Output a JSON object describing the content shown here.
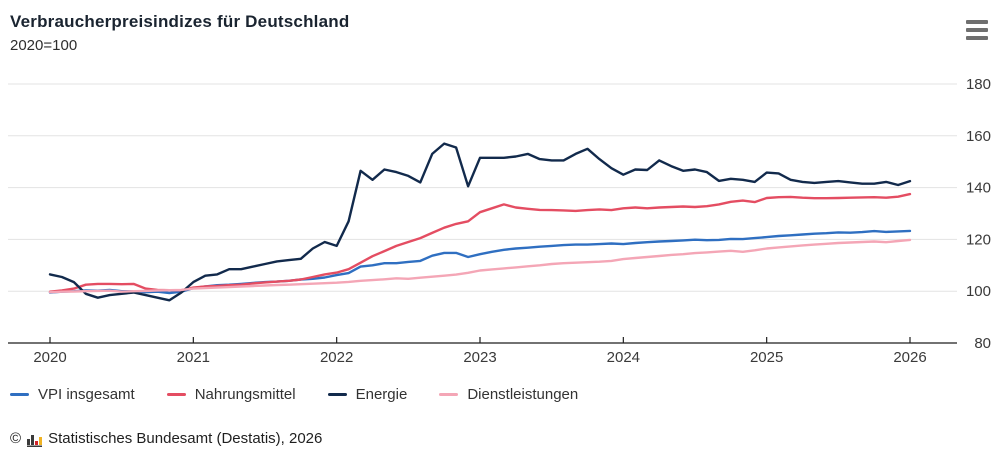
{
  "header": {
    "title": "Verbraucherpreisindizes für Deutschland",
    "subtitle": "2020=100",
    "menu_icon": "hamburger-menu-icon"
  },
  "footer": {
    "copyright_symbol": "©",
    "logo_icon": "destatis-bar-chart-icon",
    "source_text": "Statistisches Bundesamt (Destatis), 2026"
  },
  "colors": {
    "grid": "#e3e3e3",
    "axis": "#1f1f1f",
    "tick_text": "#3a3a3a",
    "title_text": "#1a2430"
  },
  "chart_data": {
    "type": "line",
    "title": "Verbraucherpreisindizes für Deutschland",
    "subtitle": "2020=100",
    "x_unit": "month",
    "x_start": "2020-01",
    "x_end": "2026-01",
    "x_tick_labels": [
      "2020",
      "2021",
      "2022",
      "2023",
      "2024",
      "2025",
      "2026"
    ],
    "y_ticks": [
      80,
      100,
      120,
      140,
      160,
      180
    ],
    "ylim": [
      80,
      186
    ],
    "grid": "horizontal",
    "y_axis_position": "right",
    "legend_position": "bottom",
    "series": [
      {
        "name": "VPI insgesamt",
        "color": "#2f6fc1",
        "values": [
          99.5,
          99.8,
          100.0,
          100.3,
          100.2,
          100.5,
          100.0,
          100.0,
          99.6,
          99.8,
          99.3,
          99.8,
          101.2,
          101.8,
          102.3,
          102.5,
          102.8,
          103.2,
          103.5,
          103.7,
          104.0,
          104.5,
          104.8,
          105.3,
          106.2,
          107.0,
          109.5,
          110.0,
          110.8,
          110.8,
          111.3,
          111.7,
          113.7,
          114.8,
          114.8,
          113.2,
          114.3,
          115.2,
          116.0,
          116.5,
          116.8,
          117.2,
          117.5,
          117.8,
          118.0,
          118.0,
          118.2,
          118.4,
          118.2,
          118.6,
          118.9,
          119.2,
          119.4,
          119.6,
          119.9,
          119.7,
          119.8,
          120.2,
          120.1,
          120.5,
          120.9,
          121.3,
          121.6,
          121.9,
          122.2,
          122.4,
          122.7,
          122.6,
          122.8,
          123.2,
          122.9,
          123.1,
          123.3
        ]
      },
      {
        "name": "Nahrungsmittel",
        "color": "#e44d62",
        "values": [
          99.8,
          100.3,
          101.0,
          102.5,
          102.8,
          102.8,
          102.7,
          102.8,
          101.0,
          100.5,
          100.4,
          100.4,
          101.4,
          101.8,
          102.0,
          102.3,
          102.5,
          103.0,
          103.4,
          103.7,
          104.0,
          104.5,
          105.5,
          106.5,
          107.2,
          108.5,
          111.0,
          113.5,
          115.5,
          117.5,
          119.0,
          120.5,
          122.5,
          124.5,
          126.0,
          127.0,
          130.5,
          132.0,
          133.5,
          132.3,
          131.8,
          131.4,
          131.3,
          131.2,
          131.0,
          131.3,
          131.6,
          131.3,
          132.0,
          132.3,
          132.0,
          132.3,
          132.5,
          132.7,
          132.5,
          132.8,
          133.5,
          134.5,
          135.0,
          134.4,
          136.0,
          136.3,
          136.4,
          136.1,
          135.9,
          135.9,
          136.0,
          136.1,
          136.2,
          136.3,
          136.1,
          136.5,
          137.5
        ]
      },
      {
        "name": "Energie",
        "color": "#122a4c",
        "values": [
          106.5,
          105.5,
          103.5,
          99.0,
          97.5,
          98.5,
          99.0,
          99.5,
          98.5,
          97.5,
          96.5,
          99.5,
          103.5,
          106.0,
          106.5,
          108.5,
          108.5,
          109.5,
          110.5,
          111.5,
          112.0,
          112.5,
          116.5,
          119.0,
          117.5,
          127.0,
          146.5,
          143.0,
          147.0,
          146.0,
          144.5,
          142.0,
          153.0,
          157.0,
          155.5,
          140.5,
          151.5,
          151.5,
          151.5,
          152.0,
          153.0,
          151.0,
          150.5,
          150.5,
          153.0,
          155.0,
          151.0,
          147.5,
          145.0,
          147.0,
          146.8,
          150.5,
          148.3,
          146.5,
          147.0,
          146.0,
          142.6,
          143.4,
          143.0,
          142.2,
          145.8,
          145.5,
          143.0,
          142.2,
          141.8,
          142.2,
          142.5,
          142.0,
          141.5,
          141.5,
          142.2,
          141.0,
          142.5
        ]
      },
      {
        "name": "Dienstleistungen",
        "color": "#f4a6b6",
        "values": [
          99.6,
          99.8,
          99.9,
          100.0,
          100.1,
          100.2,
          99.8,
          100.0,
          100.1,
          100.3,
          100.4,
          100.5,
          101.0,
          101.2,
          101.4,
          101.6,
          101.8,
          102.0,
          102.2,
          102.4,
          102.5,
          102.7,
          102.9,
          103.1,
          103.3,
          103.6,
          104.0,
          104.3,
          104.6,
          105.0,
          104.8,
          105.2,
          105.6,
          106.0,
          106.4,
          107.1,
          108.0,
          108.4,
          108.8,
          109.2,
          109.6,
          110.0,
          110.5,
          110.8,
          111.0,
          111.2,
          111.4,
          111.7,
          112.4,
          112.8,
          113.2,
          113.6,
          114.0,
          114.3,
          114.7,
          115.0,
          115.3,
          115.6,
          115.2,
          115.8,
          116.5,
          116.9,
          117.3,
          117.7,
          118.0,
          118.3,
          118.6,
          118.8,
          119.0,
          119.2,
          118.9,
          119.4,
          119.8
        ]
      }
    ]
  }
}
